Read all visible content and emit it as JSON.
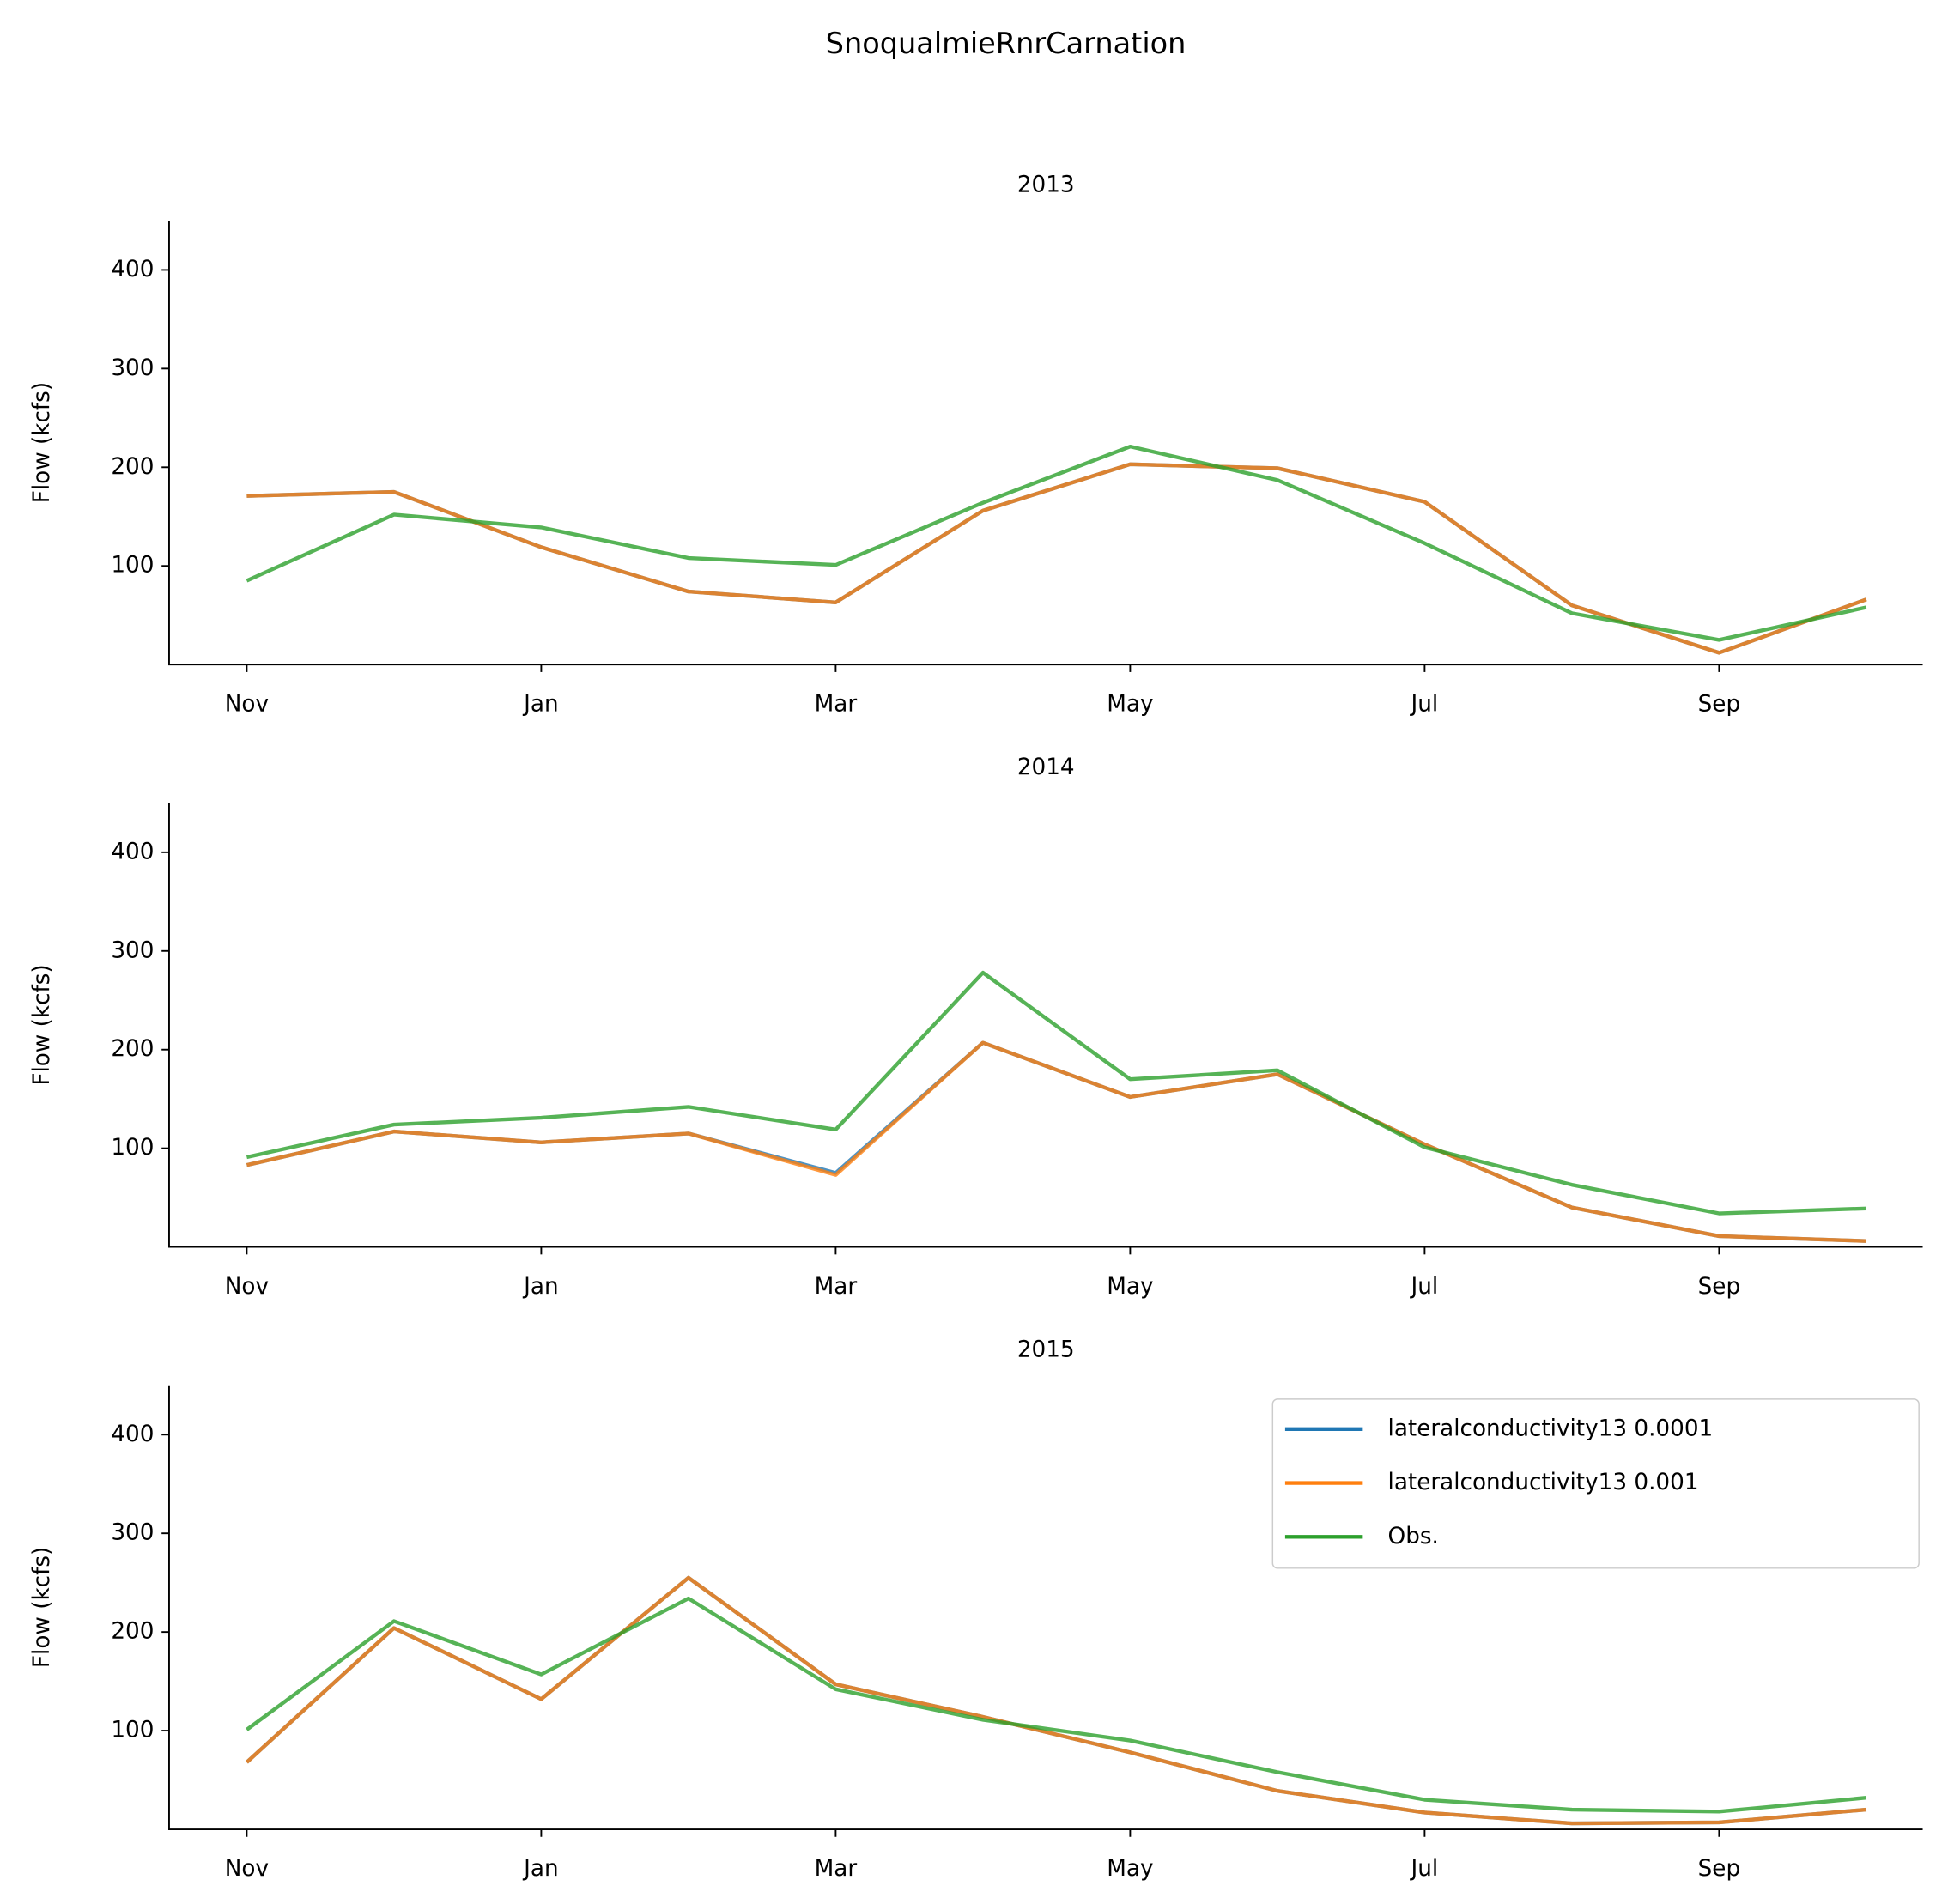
{
  "title": "SnoqualmieRnrCarnation",
  "chart_data": [
    {
      "type": "line",
      "title": "2013",
      "ylabel": "Flow (kcfs)",
      "categories": [
        "Nov",
        null,
        "Jan",
        null,
        "Mar",
        null,
        "May",
        null,
        "Jul",
        null,
        "Sep",
        null
      ],
      "ylim": [
        0,
        450
      ],
      "yticks": [
        100,
        200,
        300,
        400
      ],
      "series": [
        {
          "name": "lateralconductivity13 0.0001",
          "color": "#1f77b4",
          "values": [
            171,
            175,
            119,
            74,
            63,
            156,
            203,
            199,
            165,
            60,
            12,
            66
          ]
        },
        {
          "name": "lateralconductivity13 0.001",
          "color": "#ff7f0e",
          "values": [
            171,
            175,
            119,
            74,
            63,
            156,
            203,
            199,
            165,
            60,
            12,
            66
          ]
        },
        {
          "name": "Obs.",
          "color": "#2ca02c",
          "values": [
            85,
            152,
            139,
            108,
            101,
            164,
            221,
            187,
            123,
            52,
            25,
            58
          ]
        }
      ]
    },
    {
      "type": "line",
      "title": "2014",
      "ylabel": "Flow (kcfs)",
      "categories": [
        "Nov",
        null,
        "Jan",
        null,
        "Mar",
        null,
        "May",
        null,
        "Jul",
        null,
        "Sep",
        null
      ],
      "ylim": [
        0,
        450
      ],
      "yticks": [
        100,
        200,
        300,
        400
      ],
      "series": [
        {
          "name": "lateralconductivity13 0.0001",
          "color": "#1f77b4",
          "values": [
            83,
            117,
            106,
            115,
            75,
            207,
            152,
            175,
            104,
            40,
            11,
            6
          ]
        },
        {
          "name": "lateralconductivity13 0.001",
          "color": "#ff7f0e",
          "values": [
            83,
            117,
            106,
            115,
            73,
            207,
            152,
            175,
            104,
            40,
            11,
            6
          ]
        },
        {
          "name": "Obs.",
          "color": "#2ca02c",
          "values": [
            91,
            124,
            131,
            142,
            119,
            278,
            170,
            179,
            101,
            63,
            34,
            39
          ]
        }
      ]
    },
    {
      "type": "line",
      "title": "2015",
      "ylabel": "Flow (kcfs)",
      "categories": [
        "Nov",
        null,
        "Jan",
        null,
        "Mar",
        null,
        "May",
        null,
        "Jul",
        null,
        "Sep",
        null
      ],
      "ylim": [
        0,
        450
      ],
      "yticks": [
        100,
        200,
        300,
        400
      ],
      "legend": "upper right",
      "series": [
        {
          "name": "lateralconductivity13 0.0001",
          "color": "#1f77b4",
          "values": [
            68,
            204,
            132,
            255,
            147,
            114,
            78,
            39,
            17,
            6,
            7,
            20
          ]
        },
        {
          "name": "lateralconductivity13 0.001",
          "color": "#ff7f0e",
          "values": [
            68,
            204,
            132,
            255,
            147,
            114,
            78,
            39,
            17,
            6,
            7,
            20
          ]
        },
        {
          "name": "Obs.",
          "color": "#2ca02c",
          "values": [
            101,
            211,
            157,
            234,
            142,
            111,
            90,
            58,
            30,
            20,
            18,
            32
          ]
        }
      ]
    }
  ]
}
